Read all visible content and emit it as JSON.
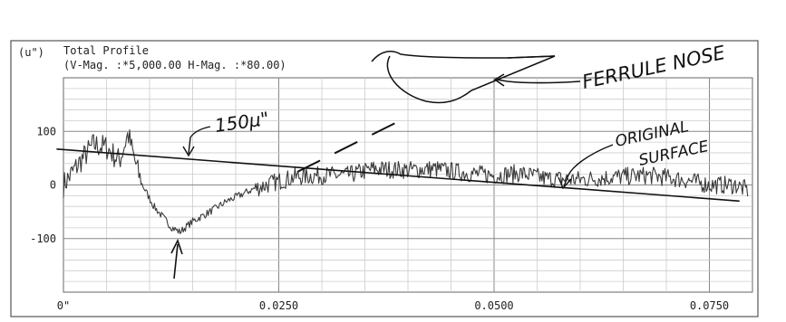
{
  "chart_data": {
    "type": "line",
    "header": {
      "unit": "(u\")",
      "title": "Total Profile",
      "subtitle": "(V-Mag. :*5,000.00 H-Mag. :*80.00)"
    },
    "ylim": [
      -200,
      200
    ],
    "xlim": [
      0,
      0.08
    ],
    "y_ticks": [
      {
        "value": 100,
        "label": "100"
      },
      {
        "value": 0,
        "label": "0"
      },
      {
        "value": -100,
        "label": "-100"
      }
    ],
    "x_ticks": [
      {
        "value": 0,
        "label": "0\""
      },
      {
        "value": 0.025,
        "label": "0.0250"
      },
      {
        "value": 0.05,
        "label": "0.0500"
      },
      {
        "value": 0.075,
        "label": "0.0750"
      }
    ],
    "grid": true,
    "profile_keypoints": [
      [
        0.0,
        0
      ],
      [
        0.002,
        45
      ],
      [
        0.0035,
        75
      ],
      [
        0.005,
        70
      ],
      [
        0.0065,
        45
      ],
      [
        0.0075,
        95
      ],
      [
        0.0082,
        50
      ],
      [
        0.009,
        5
      ],
      [
        0.0105,
        -40
      ],
      [
        0.0125,
        -78
      ],
      [
        0.0135,
        -88
      ],
      [
        0.015,
        -68
      ],
      [
        0.017,
        -50
      ],
      [
        0.019,
        -30
      ],
      [
        0.022,
        -8
      ],
      [
        0.0245,
        5
      ],
      [
        0.027,
        15
      ],
      [
        0.03,
        18
      ],
      [
        0.033,
        18
      ],
      [
        0.036,
        30
      ],
      [
        0.04,
        28
      ],
      [
        0.043,
        30
      ],
      [
        0.047,
        22
      ],
      [
        0.05,
        18
      ],
      [
        0.053,
        22
      ],
      [
        0.056,
        12
      ],
      [
        0.06,
        10
      ],
      [
        0.064,
        15
      ],
      [
        0.068,
        18
      ],
      [
        0.072,
        10
      ],
      [
        0.075,
        0
      ],
      [
        0.078,
        0
      ],
      [
        0.0795,
        -10
      ]
    ],
    "original_surface_line": [
      [
        -0.0008,
        67
      ],
      [
        0.0785,
        -30
      ]
    ],
    "annotations": {
      "depth_label": "150µ\"",
      "original_label_line1": "ORIGINAL",
      "original_label_line2": "SURFACE",
      "ferrule_label": "FERRULE NOSE"
    }
  }
}
